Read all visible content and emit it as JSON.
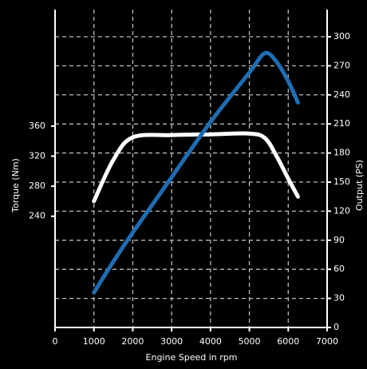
{
  "chart_data": {
    "type": "line",
    "x_label": "Engine Speed in rpm",
    "y_label": "Torque (Nm)",
    "y2_label": "Output (PS)",
    "x": [
      1000,
      1500,
      2000,
      3000,
      4000,
      5000,
      5400,
      5700,
      6000,
      6250
    ],
    "series": [
      {
        "name": "Torque",
        "color": "#ffffff",
        "values": [
          260,
          315,
          345,
          348,
          349,
          350,
          344,
          320,
          290,
          266
        ]
      },
      {
        "name": "Output",
        "color": "#1f6db3",
        "axis": "y2",
        "values": [
          36,
          68,
          98,
          155,
          212,
          263,
          283,
          274,
          254,
          232
        ]
      }
    ],
    "xlim": [
      0,
      7000
    ],
    "xticks": [
      0,
      1000,
      2000,
      3000,
      4000,
      5000,
      6000,
      7000
    ],
    "ylim": [
      92,
      515
    ],
    "yticks": [
      240,
      280,
      320,
      360
    ],
    "y2lim": [
      0,
      328
    ],
    "y2ticks": [
      0,
      30,
      60,
      90,
      120,
      150,
      180,
      210,
      240,
      270,
      300
    ],
    "grid": true
  }
}
